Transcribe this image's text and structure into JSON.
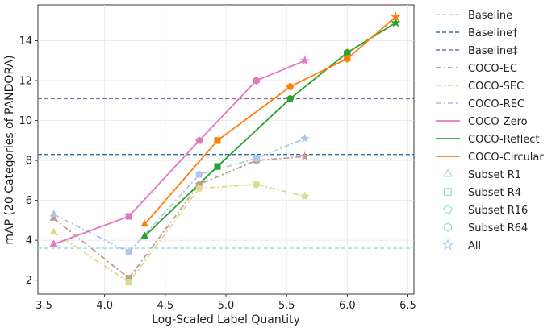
{
  "chart_data": {
    "type": "line",
    "title": "",
    "xlabel": "Log-Scaled Label Quantity",
    "ylabel": "mAP (20 Categories of PANDORA)",
    "xlim": [
      3.45,
      6.55
    ],
    "ylim": [
      1.3,
      15.8
    ],
    "xticks": [
      3.5,
      4.0,
      4.5,
      5.0,
      5.5,
      6.0,
      6.5
    ],
    "xtick_labels": [
      "3.5",
      "4.0",
      "4.5",
      "5.0",
      "5.5",
      "6.0",
      "6.5"
    ],
    "yticks": [
      2,
      4,
      6,
      8,
      10,
      12,
      14
    ],
    "ytick_labels": [
      "2",
      "4",
      "6",
      "8",
      "10",
      "12",
      "14"
    ],
    "grid": true,
    "legend_position": "outside-right",
    "hlines": [
      {
        "name": "Baseline",
        "y": 3.6,
        "color": "#9fd6e2",
        "dash": "dashed"
      },
      {
        "name": "Baseline†",
        "y": 8.3,
        "color": "#2e6fa8",
        "dash": "dashed"
      },
      {
        "name": "Baseline‡",
        "y": 11.1,
        "color": "#8a6aa0",
        "dash": "dashed"
      }
    ],
    "series": [
      {
        "name": "COCO-EC",
        "color": "#c49c94",
        "dash": "dashdot",
        "x": [
          3.58,
          4.2,
          4.78,
          5.25,
          5.65
        ],
        "y": [
          5.1,
          2.1,
          6.8,
          8.0,
          8.2
        ],
        "markers": [
          "triangle",
          "square",
          "pentagon",
          "hexagon",
          "star"
        ]
      },
      {
        "name": "COCO-SEC",
        "color": "#dbdb8d",
        "dash": "dashdot",
        "x": [
          3.58,
          4.2,
          4.78,
          5.25,
          5.65
        ],
        "y": [
          4.4,
          1.9,
          6.6,
          6.8,
          6.2
        ],
        "markers": [
          "triangle",
          "square",
          "pentagon",
          "hexagon",
          "star"
        ]
      },
      {
        "name": "COCO-REC",
        "color": "#aec7e8",
        "dash": "dashdot",
        "x": [
          3.58,
          4.2,
          4.78,
          5.25,
          5.65
        ],
        "y": [
          5.3,
          3.4,
          7.3,
          8.1,
          9.1
        ],
        "markers": [
          "triangle",
          "square",
          "pentagon",
          "hexagon",
          "star"
        ]
      },
      {
        "name": "COCO-Zero",
        "color": "#e377c2",
        "dash": "solid",
        "x": [
          3.58,
          4.2,
          4.78,
          5.25,
          5.65
        ],
        "y": [
          3.8,
          5.2,
          9.0,
          12.0,
          13.0
        ],
        "markers": [
          "triangle",
          "square",
          "pentagon",
          "hexagon",
          "star"
        ]
      },
      {
        "name": "COCO-Reflect",
        "color": "#2ca02c",
        "dash": "solid",
        "x": [
          4.33,
          4.93,
          5.53,
          6.0,
          6.4
        ],
        "y": [
          4.2,
          7.7,
          11.1,
          13.4,
          14.9
        ],
        "markers": [
          "triangle",
          "square",
          "pentagon",
          "hexagon",
          "star"
        ]
      },
      {
        "name": "COCO-Circular",
        "color": "#ff7f0e",
        "dash": "solid",
        "x": [
          4.33,
          4.93,
          5.53,
          6.0,
          6.4
        ],
        "y": [
          4.8,
          9.0,
          11.7,
          13.1,
          15.2
        ],
        "markers": [
          "triangle",
          "square",
          "pentagon",
          "hexagon",
          "star"
        ]
      }
    ],
    "marker_legend": [
      {
        "name": "Subset R1",
        "marker": "triangle"
      },
      {
        "name": "Subset R4",
        "marker": "square"
      },
      {
        "name": "Subset R16",
        "marker": "pentagon"
      },
      {
        "name": "Subset R64",
        "marker": "hexagon"
      },
      {
        "name": "All",
        "marker": "star"
      }
    ],
    "marker_legend_color": "#9fd6e2"
  }
}
